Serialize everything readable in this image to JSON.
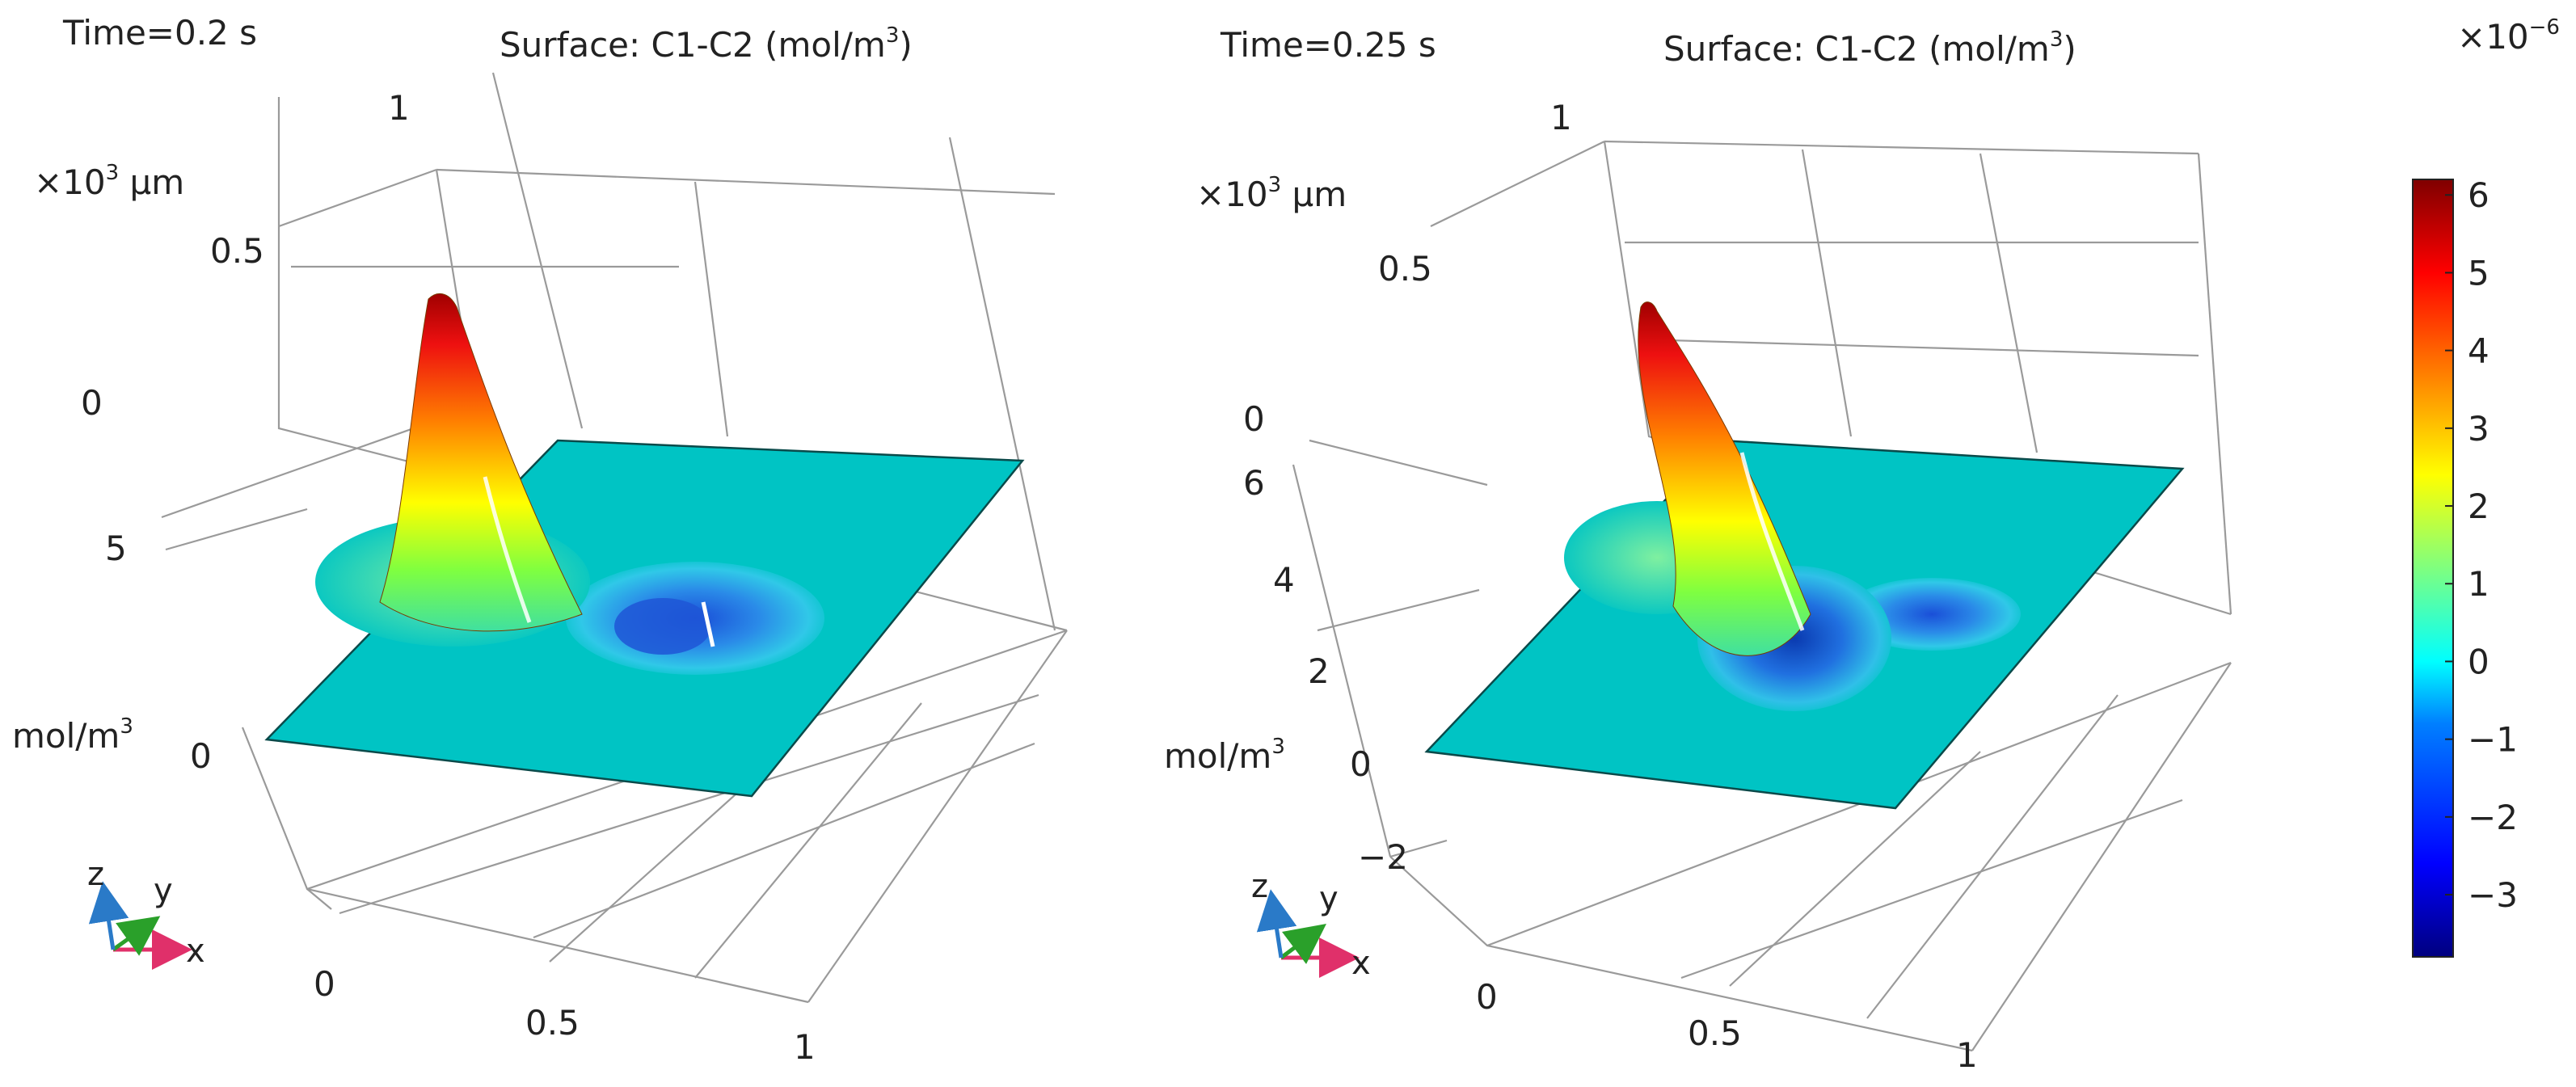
{
  "chart_data": [
    {
      "type": "surface3d",
      "time_label": "Time=0.2 s",
      "title": "Surface: C1-C2 (mol/m",
      "title_sup": "3",
      "title_end": ")",
      "y_axis_unit": "×10",
      "y_axis_unit_sup": "3",
      "y_axis_unit_end": " μm",
      "y_ticks": [
        "1",
        "0.5",
        "0"
      ],
      "z_ticks": [
        "5",
        "0"
      ],
      "z_label": "mol/m",
      "z_label_sup": "3",
      "x_ticks": [
        "0",
        "0.5",
        "1"
      ],
      "features": {
        "peak_value": 6.2,
        "trough_value": -2.5
      }
    },
    {
      "type": "surface3d",
      "time_label": "Time=0.25 s",
      "title": "Surface: C1-C2 (mol/m",
      "title_sup": "3",
      "title_end": ")",
      "y_axis_unit": "×10",
      "y_axis_unit_sup": "3",
      "y_axis_unit_end": " μm",
      "y_ticks": [
        "1",
        "0.5",
        "0"
      ],
      "z_ticks": [
        "6",
        "4",
        "2",
        "0",
        "−2"
      ],
      "z_label": "mol/m",
      "z_label_sup": "3",
      "x_ticks": [
        "0",
        "0.5",
        "1"
      ],
      "features": {
        "peak_value": 6.2,
        "trough_value": -3.6
      }
    }
  ],
  "axis_triad": {
    "x": "x",
    "y": "y",
    "z": "z"
  },
  "colorbar": {
    "exponent_base": "×10",
    "exponent_sup": "−6",
    "min": -3.8,
    "max": 6.2,
    "ticks": [
      "6",
      "5",
      "4",
      "3",
      "2",
      "1",
      "0",
      "−1",
      "−2",
      "−3"
    ],
    "tick_values": [
      6,
      5,
      4,
      3,
      2,
      1,
      0,
      -1,
      -2,
      -3
    ],
    "colors": [
      "#00007f",
      "#0000ff",
      "#007fff",
      "#00ffff",
      "#7fff7f",
      "#ffff00",
      "#ff7f00",
      "#ff0000",
      "#7f0000"
    ]
  }
}
